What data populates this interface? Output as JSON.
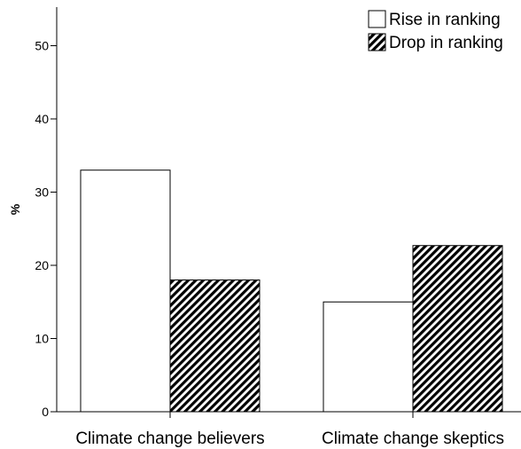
{
  "chart_data": {
    "type": "bar",
    "title": "",
    "xlabel": "",
    "ylabel": "%",
    "categories": [
      "Climate change believers",
      "Climate change skeptics"
    ],
    "series": [
      {
        "name": "Rise in ranking",
        "values": [
          33,
          15
        ],
        "fill": "#ffffff",
        "pattern": "none"
      },
      {
        "name": "Drop in ranking",
        "values": [
          18,
          22.7
        ],
        "fill": "#000000",
        "pattern": "diagonal-hatch"
      }
    ],
    "ylim": [
      0,
      55
    ],
    "yticks": [
      "0",
      "10",
      "20",
      "30",
      "40",
      "50"
    ],
    "legend_position": "top-right",
    "grid": false
  }
}
